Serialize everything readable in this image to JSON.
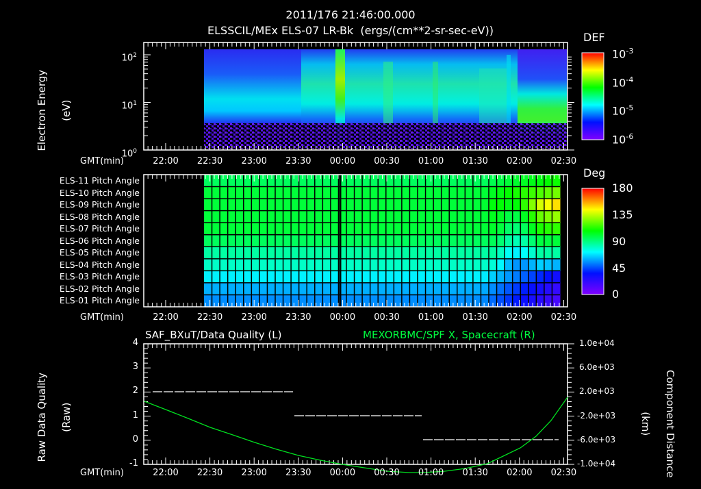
{
  "header": {
    "datetime": "2011/176 21:46:00.000",
    "subtitle": "ELSSCIL/MEx ELS-07 LR-Bk  (ergs/(cm**2-sr-sec-eV))"
  },
  "time_axis": {
    "label": "GMT(min)",
    "ticks": [
      "22:00",
      "22:30",
      "23:00",
      "23:30",
      "00:00",
      "00:30",
      "01:00",
      "01:30",
      "02:00",
      "02:30"
    ]
  },
  "panel1": {
    "ylabel_line1": "Electron Energy",
    "ylabel_line2": "(eV)",
    "yticks": [
      "10",
      "10",
      "10"
    ],
    "yexps": [
      "2",
      "1",
      "0"
    ],
    "colorbar": {
      "title": "DEF",
      "labels": [
        "10",
        "10",
        "10",
        "10"
      ],
      "exps": [
        "-3",
        "-4",
        "-5",
        "-6"
      ]
    }
  },
  "panel2": {
    "channels": [
      "ELS-11 Pitch Angle",
      "ELS-10 Pitch Angle",
      "ELS-09 Pitch Angle",
      "ELS-08 Pitch Angle",
      "ELS-07 Pitch Angle",
      "ELS-06 Pitch Angle",
      "ELS-05 Pitch Angle",
      "ELS-04 Pitch Angle",
      "ELS-03 Pitch Angle",
      "ELS-02 Pitch Angle",
      "ELS-01 Pitch Angle"
    ],
    "colorbar": {
      "title": "Deg",
      "labels": [
        "180",
        "135",
        "90",
        "45",
        "0"
      ]
    }
  },
  "panel3": {
    "left_title": "SAF_BXuT/Data Quality (L)",
    "right_title": "MEXORBMC/SPF X, Spacecraft (R)",
    "right_title_color": "#00ff00",
    "ylabel_line1": "Raw Data Quality",
    "ylabel_line2": "(Raw)",
    "yticks_left": [
      "4",
      "3",
      "2",
      "1",
      "0",
      "-1"
    ],
    "yticks_right": [
      "1.0e+04",
      "6.0e+03",
      "2.0e+03",
      "-2.0e+03",
      "-6.0e+03",
      "-1.0e+04"
    ],
    "rlabel_line1": "Component Distance",
    "rlabel_line2": "(km)"
  },
  "chart_data": [
    {
      "type": "heatmap",
      "title": "ELSSCIL/MEx ELS-07 LR-Bk (ergs/(cm**2-sr-sec-eV))",
      "xlabel": "GMT(min)",
      "ylabel": "Electron Energy (eV)",
      "yscale": "log",
      "ylim": [
        1,
        150
      ],
      "x_range": [
        "21:46",
        "02:34"
      ],
      "data_start": "22:27",
      "colorbar": {
        "label": "DEF",
        "scale": "log",
        "range": [
          1e-06,
          0.001
        ]
      },
      "features": [
        {
          "time": "00:00",
          "energy_range": [
            8,
            150
          ],
          "level": "~2e-4 (yellow-green burst)"
        },
        {
          "time_range": [
            "22:27",
            "23:30"
          ],
          "energy_range": [
            5,
            15
          ],
          "level": "~1e-5 (cyan band)"
        },
        {
          "time_range": [
            "00:05",
            "01:45"
          ],
          "energy_range": [
            6,
            60
          ],
          "level": "~5e-5 (green/cyan)"
        },
        {
          "time_range": [
            "02:12",
            "02:34"
          ],
          "energy_range": [
            4,
            20
          ],
          "level": "~1e-4 (green)"
        }
      ]
    },
    {
      "type": "heatmap",
      "title": "Pitch Angle",
      "xlabel": "GMT(min)",
      "categories": [
        "ELS-11",
        "ELS-10",
        "ELS-09",
        "ELS-08",
        "ELS-07",
        "ELS-06",
        "ELS-05",
        "ELS-04",
        "ELS-03",
        "ELS-02",
        "ELS-01"
      ],
      "colorbar": {
        "label": "Deg",
        "range": [
          0,
          180
        ],
        "ticks": [
          0,
          45,
          90,
          135,
          180
        ]
      },
      "approx_values_22_30_to_01_45": [
        95,
        100,
        100,
        100,
        100,
        95,
        85,
        80,
        70,
        60,
        55
      ],
      "approx_values_02_25": [
        110,
        125,
        150,
        130,
        115,
        100,
        85,
        60,
        30,
        20,
        15
      ]
    },
    {
      "type": "line",
      "title": "SAF_BXuT/Data Quality (L) ; MEXORBMC/SPF X, Spacecraft (R)",
      "xlabel": "GMT(min)",
      "ylabel": "Raw Data Quality (Raw)",
      "ylabel_right": "Component Distance (km)",
      "ylim": [
        -1,
        4
      ],
      "ylim_right": [
        -10000,
        10000
      ],
      "series": [
        {
          "name": "SAF_BXuT/Data Quality",
          "axis": "left",
          "style": "dashed white",
          "points": [
            [
              "21:52",
              2
            ],
            [
              "23:29",
              2
            ],
            [
              "23:30",
              1
            ],
            [
              "00:57",
              1
            ],
            [
              "00:58",
              0
            ],
            [
              "02:27",
              0
            ]
          ]
        },
        {
          "name": "MEXORBMC/SPF X, Spacecraft",
          "axis": "right",
          "color": "#00ff00",
          "points": [
            [
              "21:46",
              2400
            ],
            [
              "22:00",
              1400
            ],
            [
              "22:30",
              -1000
            ],
            [
              "23:00",
              -3200
            ],
            [
              "23:30",
              -5300
            ],
            [
              "00:00",
              -7000
            ],
            [
              "00:30",
              -8200
            ],
            [
              "00:50",
              -8600
            ],
            [
              "01:00",
              -8600
            ],
            [
              "01:30",
              -7600
            ],
            [
              "01:50",
              -6000
            ],
            [
              "02:00",
              -4700
            ],
            [
              "02:15",
              -2200
            ],
            [
              "02:34",
              1000
            ]
          ]
        }
      ]
    }
  ]
}
